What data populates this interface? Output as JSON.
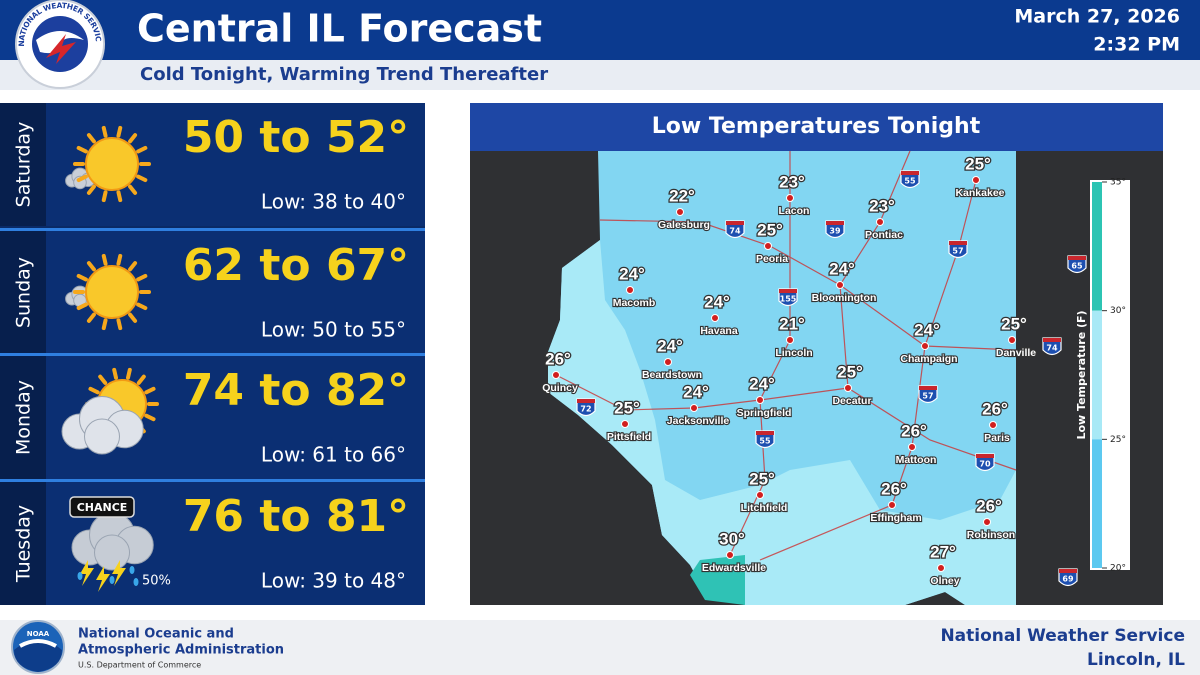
{
  "header": {
    "logo_text": "NATIONAL WEATHER SERVICE",
    "title": "Central IL Forecast",
    "subtitle": "Cold Tonight, Warming Trend Thereafter",
    "date": "March 27, 2026",
    "time": "2:32 PM"
  },
  "forecast": {
    "days": [
      {
        "day": "Saturday",
        "high": "50 to 52°",
        "low": "Low: 38 to 40°"
      },
      {
        "day": "Sunday",
        "high": "62 to 67°",
        "low": "Low: 50 to 55°"
      },
      {
        "day": "Monday",
        "high": "74 to 82°",
        "low": "Low: 61 to 66°"
      },
      {
        "day": "Tuesday",
        "high": "76 to 81°",
        "low": "Low: 39 to 48°",
        "badge": "CHANCE",
        "chance": "50%"
      }
    ]
  },
  "map": {
    "title": "Low Temperatures Tonight",
    "legend": {
      "title": "Low Temperature (F)",
      "ticks": [
        {
          "value": 35,
          "label": "35°"
        },
        {
          "value": 30,
          "label": "30°"
        },
        {
          "value": 25,
          "label": "25°"
        },
        {
          "value": 20,
          "label": "20°"
        }
      ]
    },
    "cities": [
      {
        "name": "Galesburg",
        "temp": "22°"
      },
      {
        "name": "Lacon",
        "temp": "23°"
      },
      {
        "name": "Kankakee",
        "temp": "25°"
      },
      {
        "name": "Peoria",
        "temp": "25°"
      },
      {
        "name": "Pontiac",
        "temp": "23°"
      },
      {
        "name": "Macomb",
        "temp": "24°"
      },
      {
        "name": "Bloomington",
        "temp": "24°"
      },
      {
        "name": "Havana",
        "temp": "24°"
      },
      {
        "name": "Lincoln",
        "temp": "21°"
      },
      {
        "name": "Champaign",
        "temp": "24°"
      },
      {
        "name": "Danville",
        "temp": "25°"
      },
      {
        "name": "Quincy",
        "temp": "26°"
      },
      {
        "name": "Beardstown",
        "temp": "24°"
      },
      {
        "name": "Decatur",
        "temp": "25°"
      },
      {
        "name": "Springfield",
        "temp": "24°"
      },
      {
        "name": "Jacksonville",
        "temp": "24°"
      },
      {
        "name": "Pittsfield",
        "temp": "25°"
      },
      {
        "name": "Paris",
        "temp": "26°"
      },
      {
        "name": "Mattoon",
        "temp": "26°"
      },
      {
        "name": "Litchfield",
        "temp": "25°"
      },
      {
        "name": "Effingham",
        "temp": "26°"
      },
      {
        "name": "Robinson",
        "temp": "26°"
      },
      {
        "name": "Olney",
        "temp": "27°"
      },
      {
        "name": "Edwardsville",
        "temp": "30°"
      }
    ],
    "highways": [
      "74",
      "39",
      "55",
      "57",
      "155",
      "72",
      "55",
      "57",
      "70",
      "74",
      "65",
      "69"
    ]
  },
  "footer": {
    "logo_text": "NOAA",
    "agency_line1": "National Oceanic and",
    "agency_line2": "Atmospheric Administration",
    "department": "U.S. Department of Commerce",
    "office": "National Weather Service",
    "location": "Lincoln, IL"
  }
}
